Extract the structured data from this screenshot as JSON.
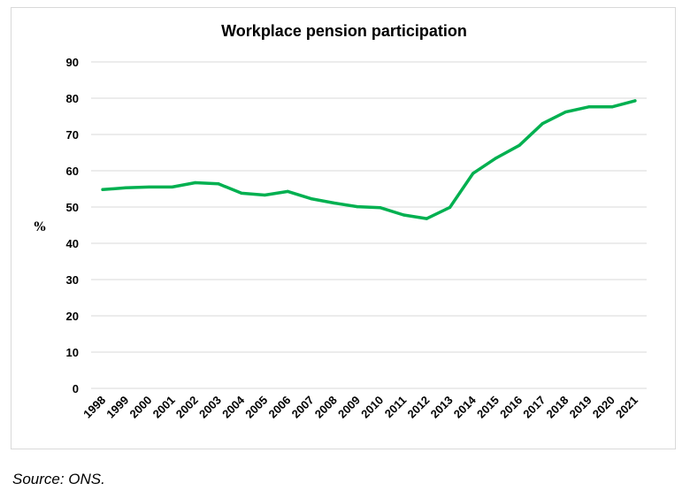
{
  "chart_data": {
    "type": "line",
    "title": "Workplace pension participation",
    "xlabel": "",
    "ylabel": "%",
    "ylim": [
      0,
      90
    ],
    "yticks": [
      0,
      10,
      20,
      30,
      40,
      50,
      60,
      70,
      80,
      90
    ],
    "grid": true,
    "legend": "none",
    "categories": [
      "1998",
      "1999",
      "2000",
      "2001",
      "2002",
      "2003",
      "2004",
      "2005",
      "2006",
      "2007",
      "2008",
      "2009",
      "2010",
      "2011",
      "2012",
      "2013",
      "2014",
      "2015",
      "2016",
      "2017",
      "2018",
      "2019",
      "2020",
      "2021"
    ],
    "series": [
      {
        "color": "#00b050",
        "values": [
          54.8,
          55.3,
          55.5,
          55.5,
          56.7,
          56.4,
          53.8,
          53.3,
          54.3,
          52.3,
          51.1,
          50.1,
          49.8,
          47.8,
          46.8,
          49.9,
          59.3,
          63.5,
          67.0,
          73.0,
          76.2,
          77.6,
          77.6,
          79.3
        ]
      }
    ]
  },
  "source": "Source: ONS."
}
